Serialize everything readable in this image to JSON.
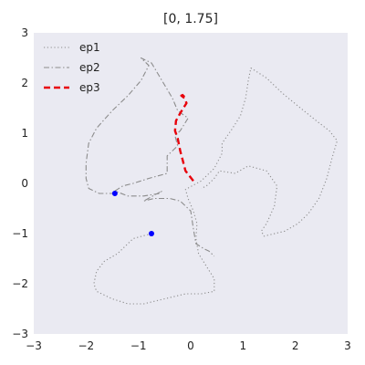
{
  "chart_data": {
    "type": "line",
    "title": "[0, 1.75]",
    "xlabel": "",
    "ylabel": "",
    "xlim": [
      -3,
      3
    ],
    "ylim": [
      -3,
      3
    ],
    "x_ticks": [
      -3,
      -2,
      -1,
      0,
      1,
      2,
      3
    ],
    "y_ticks": [
      -3,
      -2,
      -1,
      0,
      1,
      2,
      3
    ],
    "x_tick_labels": [
      "−3",
      "−2",
      "−1",
      "0",
      "1",
      "2",
      "3"
    ],
    "y_tick_labels": [
      "−3",
      "−2",
      "−1",
      "0",
      "1",
      "2",
      "3"
    ],
    "grid": false,
    "legend_position": "top-left",
    "series": [
      {
        "name": "ep1",
        "style": "dotted",
        "color": "#8c8c8c",
        "points": [
          [
            -0.75,
            -1.0
          ],
          [
            -1.1,
            -1.1
          ],
          [
            -1.4,
            -1.4
          ],
          [
            -1.65,
            -1.55
          ],
          [
            -1.8,
            -1.75
          ],
          [
            -1.85,
            -2.0
          ],
          [
            -1.8,
            -2.15
          ],
          [
            -1.5,
            -2.3
          ],
          [
            -1.2,
            -2.4
          ],
          [
            -0.9,
            -2.4
          ],
          [
            -0.5,
            -2.3
          ],
          [
            -0.1,
            -2.2
          ],
          [
            0.2,
            -2.2
          ],
          [
            0.45,
            -2.15
          ],
          [
            0.45,
            -1.9
          ],
          [
            0.3,
            -1.65
          ],
          [
            0.15,
            -1.4
          ],
          [
            0.1,
            -1.1
          ],
          [
            0.12,
            -0.8
          ],
          [
            0.05,
            -0.55
          ],
          [
            -0.05,
            -0.3
          ],
          [
            -0.1,
            -0.12
          ],
          [
            0.2,
            0.05
          ],
          [
            0.45,
            0.3
          ],
          [
            0.6,
            0.6
          ],
          [
            0.6,
            0.8
          ],
          [
            0.8,
            1.1
          ],
          [
            0.95,
            1.35
          ],
          [
            1.05,
            1.7
          ],
          [
            1.1,
            2.05
          ],
          [
            1.15,
            2.3
          ],
          [
            1.45,
            2.1
          ],
          [
            1.75,
            1.8
          ],
          [
            2.1,
            1.5
          ],
          [
            2.4,
            1.25
          ],
          [
            2.65,
            1.05
          ],
          [
            2.8,
            0.85
          ],
          [
            2.7,
            0.5
          ],
          [
            2.6,
            0.1
          ],
          [
            2.45,
            -0.3
          ],
          [
            2.25,
            -0.6
          ],
          [
            2.05,
            -0.8
          ],
          [
            1.8,
            -0.95
          ],
          [
            1.4,
            -1.05
          ],
          [
            1.35,
            -0.95
          ],
          [
            1.45,
            -0.8
          ],
          [
            1.6,
            -0.45
          ],
          [
            1.65,
            -0.05
          ],
          [
            1.45,
            0.25
          ],
          [
            1.1,
            0.35
          ],
          [
            0.85,
            0.2
          ],
          [
            0.55,
            0.25
          ],
          [
            0.45,
            0.1
          ],
          [
            0.3,
            -0.05
          ],
          [
            0.2,
            -0.1
          ]
        ]
      },
      {
        "name": "ep2",
        "style": "dashdot",
        "color": "#8c8c8c",
        "points": [
          [
            -1.45,
            -0.2
          ],
          [
            -1.75,
            -0.2
          ],
          [
            -1.95,
            -0.1
          ],
          [
            -2.0,
            0.1
          ],
          [
            -2.0,
            0.4
          ],
          [
            -1.95,
            0.8
          ],
          [
            -1.8,
            1.1
          ],
          [
            -1.5,
            1.45
          ],
          [
            -1.2,
            1.75
          ],
          [
            -0.95,
            2.05
          ],
          [
            -0.8,
            2.35
          ],
          [
            -0.9,
            2.45
          ],
          [
            -0.95,
            2.5
          ],
          [
            -0.75,
            2.4
          ],
          [
            -0.55,
            2.05
          ],
          [
            -0.35,
            1.7
          ],
          [
            -0.25,
            1.45
          ],
          [
            -0.05,
            1.3
          ],
          [
            -0.2,
            1.05
          ],
          [
            -0.3,
            0.95
          ],
          [
            -0.25,
            0.75
          ],
          [
            -0.45,
            0.55
          ],
          [
            -0.45,
            0.2
          ],
          [
            -0.8,
            0.1
          ],
          [
            -1.1,
            0.0
          ],
          [
            -1.3,
            -0.05
          ],
          [
            -1.45,
            -0.15
          ],
          [
            -1.2,
            -0.25
          ],
          [
            -0.9,
            -0.25
          ],
          [
            -0.6,
            -0.2
          ],
          [
            -0.55,
            -0.15
          ],
          [
            -0.9,
            -0.35
          ],
          [
            -0.7,
            -0.3
          ],
          [
            -0.4,
            -0.3
          ],
          [
            -0.2,
            -0.35
          ],
          [
            0.0,
            -0.55
          ],
          [
            0.05,
            -0.9
          ],
          [
            0.1,
            -1.2
          ],
          [
            0.25,
            -1.3
          ],
          [
            0.35,
            -1.35
          ],
          [
            0.45,
            -1.45
          ]
        ]
      },
      {
        "name": "ep3",
        "style": "dashed",
        "color": "#e8000b",
        "points": [
          [
            0.05,
            0.05
          ],
          [
            -0.1,
            0.25
          ],
          [
            -0.15,
            0.45
          ],
          [
            -0.2,
            0.65
          ],
          [
            -0.25,
            0.9
          ],
          [
            -0.3,
            1.05
          ],
          [
            -0.28,
            1.25
          ],
          [
            -0.2,
            1.4
          ],
          [
            -0.08,
            1.6
          ],
          [
            -0.12,
            1.7
          ],
          [
            -0.18,
            1.75
          ],
          [
            -0.1,
            1.78
          ],
          [
            -0.15,
            1.72
          ]
        ]
      }
    ],
    "markers": [
      {
        "x": -1.45,
        "y": -0.2,
        "color": "#0000ff"
      },
      {
        "x": -0.75,
        "y": -1.0,
        "color": "#0000ff"
      }
    ]
  }
}
